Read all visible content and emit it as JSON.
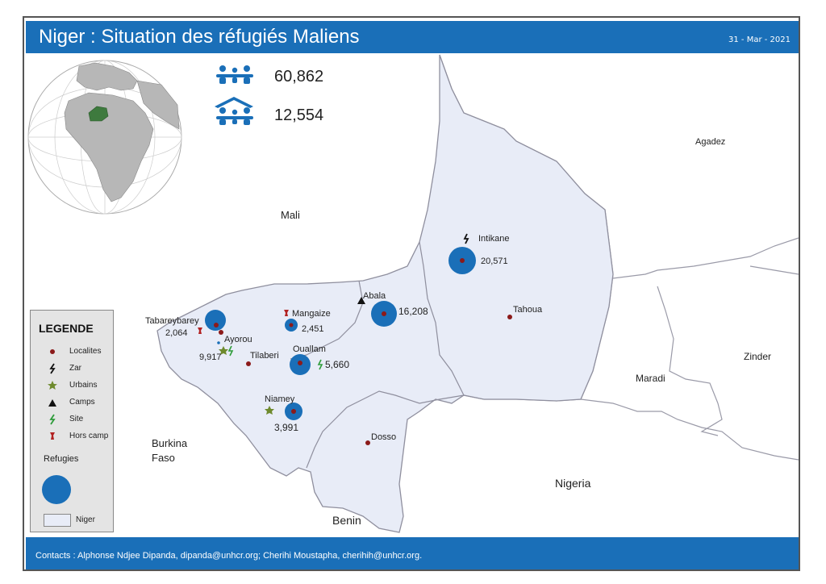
{
  "header": {
    "title": "Niger : Situation des réfugiés Maliens",
    "date": "31 - Mar - 2021"
  },
  "stats": [
    {
      "icon": "refugee-family-icon",
      "value": "60,862"
    },
    {
      "icon": "shelter-family-icon",
      "value": "12,554"
    }
  ],
  "regions": {
    "mali": "Mali",
    "agadez": "Agadez",
    "tahoua": "Tahoua",
    "zinder": "Zinder",
    "maradi": "Maradi",
    "nigeria": "Nigeria",
    "benin": "Benin",
    "burkina_1": "Burkina",
    "burkina_2": "Faso",
    "dosso": "Dosso"
  },
  "places": {
    "intikane": {
      "name": "Intikane",
      "value": "20,571"
    },
    "abala": {
      "name": "Abala",
      "value": "16,208"
    },
    "mangaize": {
      "name": "Mangaize",
      "value": "2,451"
    },
    "tabareybarey": {
      "name": "Tabareybarey",
      "value": "2,064"
    },
    "ayorou": {
      "name": "Ayorou",
      "value": "9,917"
    },
    "tillaberi": {
      "name": "Tilaberi"
    },
    "ouallam": {
      "name": "Ouallam",
      "value": "5,660"
    },
    "niamey": {
      "name": "Niamey",
      "value": "3,991"
    }
  },
  "legend": {
    "title": "LEGENDE",
    "items": [
      {
        "icon": "locality-dot-icon",
        "label": "Localites"
      },
      {
        "icon": "zar-bolt-icon",
        "label": "Zar"
      },
      {
        "icon": "urban-star-icon",
        "label": "Urbains"
      },
      {
        "icon": "camp-triangle-icon",
        "label": "Camps"
      },
      {
        "icon": "site-bolt-icon",
        "label": "Site"
      },
      {
        "icon": "hors-camp-pin-icon",
        "label": "Hors camp"
      }
    ],
    "refugies": "Refugies",
    "niger": "Niger"
  },
  "footer": {
    "contacts": "Contacts : Alphonse Ndjee Dipanda, dipanda@unhcr.org; Cherihi Moustapha, cherihih@unhcr.org."
  },
  "colors": {
    "brand_blue": "#1a6fb8",
    "niger_fill": "#e8ecf7",
    "locality_red": "#8b1a1a",
    "niger_green": "#3e7a3e"
  }
}
